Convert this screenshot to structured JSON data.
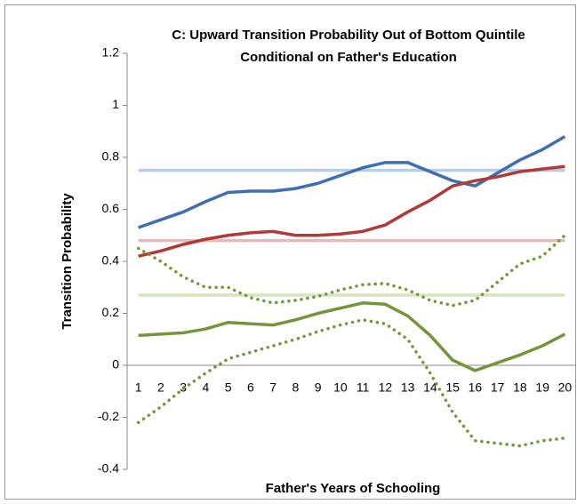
{
  "chart_data": {
    "type": "line",
    "title": [
      "C: Upward Transition Probability Out of Bottom Quintile",
      "Conditional on Father's Education"
    ],
    "x_label": "Father's Years of Schooling",
    "y_label": "Transition Probability",
    "categories": [
      "1",
      "2",
      "3",
      "4",
      "5",
      "6",
      "7",
      "8",
      "9",
      "10",
      "11",
      "12",
      "13",
      "14",
      "15",
      "16",
      "17",
      "18",
      "19",
      "20"
    ],
    "series": [
      {
        "color": "#3f6fb0",
        "style": "solid",
        "values": [
          0.53,
          0.56,
          0.59,
          0.63,
          0.665,
          0.67,
          0.67,
          0.68,
          0.7,
          0.73,
          0.76,
          0.78,
          0.78,
          0.745,
          0.71,
          0.69,
          0.74,
          0.79,
          0.83,
          0.88
        ]
      },
      {
        "color": "#b03a3a",
        "style": "solid",
        "values": [
          0.42,
          0.44,
          0.465,
          0.485,
          0.5,
          0.51,
          0.515,
          0.5,
          0.5,
          0.505,
          0.515,
          0.54,
          0.59,
          0.635,
          0.69,
          0.71,
          0.725,
          0.745,
          0.755,
          0.765
        ]
      },
      {
        "color": "#77933c",
        "style": "solid",
        "values": [
          0.115,
          0.12,
          0.125,
          0.14,
          0.165,
          0.16,
          0.155,
          0.175,
          0.2,
          0.22,
          0.24,
          0.235,
          0.19,
          0.115,
          0.02,
          -0.02,
          0.01,
          0.04,
          0.075,
          0.12
        ]
      },
      {
        "color": "#77933c",
        "style": "dotted",
        "values": [
          0.45,
          0.4,
          0.34,
          0.3,
          0.3,
          0.26,
          0.24,
          0.25,
          0.265,
          0.29,
          0.31,
          0.315,
          0.29,
          0.25,
          0.23,
          0.25,
          0.32,
          0.39,
          0.42,
          0.5
        ]
      },
      {
        "color": "#77933c",
        "style": "dotted",
        "values": [
          -0.22,
          -0.16,
          -0.09,
          -0.03,
          0.025,
          0.05,
          0.075,
          0.1,
          0.13,
          0.155,
          0.175,
          0.16,
          0.1,
          -0.03,
          -0.18,
          -0.29,
          -0.3,
          -0.31,
          -0.29,
          -0.28
        ]
      }
    ],
    "reference_lines": [
      {
        "value": 0.75,
        "color": "#b9cde5"
      },
      {
        "value": 0.48,
        "color": "#e6b9b8"
      },
      {
        "value": 0.27,
        "color": "#d7e4bd"
      }
    ],
    "ylim": [
      -0.4,
      1.2
    ],
    "yticks": [
      -0.4,
      -0.2,
      0,
      0.2,
      0.4,
      0.6,
      0.8,
      1,
      1.2
    ],
    "grid": false
  }
}
